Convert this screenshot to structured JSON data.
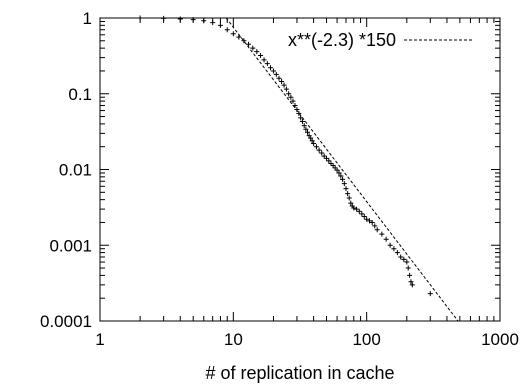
{
  "chart_data": {
    "type": "scatter",
    "title": "",
    "xlabel": "# of replication in cache",
    "ylabel": "",
    "x_scale": "log",
    "y_scale": "log",
    "xlim": [
      1,
      1000
    ],
    "ylim": [
      0.0001,
      1
    ],
    "x_ticks": [
      {
        "value": 1,
        "label": "1"
      },
      {
        "value": 10,
        "label": "10"
      },
      {
        "value": 100,
        "label": "100"
      },
      {
        "value": 1000,
        "label": "1000"
      }
    ],
    "y_ticks": [
      {
        "value": 1,
        "label": "1"
      },
      {
        "value": 0.1,
        "label": "0.1"
      },
      {
        "value": 0.01,
        "label": "0.01"
      },
      {
        "value": 0.001,
        "label": "0.001"
      },
      {
        "value": 0.0001,
        "label": "0.0001"
      }
    ],
    "grid": false,
    "legend_position": "top-right",
    "fit_line": {
      "label": "x**(-2.3) *150",
      "coefficient": 150,
      "exponent": -2.3,
      "style": "dashed",
      "color": "#000000"
    },
    "series": [
      {
        "marker": "+",
        "color": "#000000",
        "points": [
          [
            2,
            1
          ],
          [
            3,
            0.99
          ],
          [
            4,
            0.97
          ],
          [
            5,
            0.95
          ],
          [
            6,
            0.92
          ],
          [
            7,
            0.87
          ],
          [
            8,
            0.8
          ],
          [
            9,
            0.7
          ],
          [
            10,
            0.62
          ],
          [
            11,
            0.56
          ],
          [
            12,
            0.5
          ],
          [
            13,
            0.45
          ],
          [
            14,
            0.4
          ],
          [
            15,
            0.36
          ],
          [
            16,
            0.32
          ],
          [
            17,
            0.28
          ],
          [
            18,
            0.25
          ],
          [
            19,
            0.22
          ],
          [
            20,
            0.2
          ],
          [
            21,
            0.18
          ],
          [
            22,
            0.16
          ],
          [
            23,
            0.145
          ],
          [
            24,
            0.13
          ],
          [
            25,
            0.115
          ],
          [
            26,
            0.1
          ],
          [
            27,
            0.09
          ],
          [
            28,
            0.08
          ],
          [
            29,
            0.07
          ],
          [
            30,
            0.062
          ],
          [
            31,
            0.055
          ],
          [
            32,
            0.048
          ],
          [
            33,
            0.043
          ],
          [
            34,
            0.038
          ],
          [
            35,
            0.034
          ],
          [
            36,
            0.031
          ],
          [
            37,
            0.028
          ],
          [
            38,
            0.026
          ],
          [
            39,
            0.024
          ],
          [
            40,
            0.022
          ],
          [
            42,
            0.02
          ],
          [
            44,
            0.018
          ],
          [
            46,
            0.0165
          ],
          [
            48,
            0.015
          ],
          [
            50,
            0.014
          ],
          [
            52,
            0.013
          ],
          [
            54,
            0.012
          ],
          [
            56,
            0.0113
          ],
          [
            58,
            0.0105
          ],
          [
            60,
            0.0098
          ],
          [
            62,
            0.009
          ],
          [
            64,
            0.0082
          ],
          [
            66,
            0.0074
          ],
          [
            68,
            0.0065
          ],
          [
            70,
            0.0056
          ],
          [
            72,
            0.0048
          ],
          [
            74,
            0.0042
          ],
          [
            76,
            0.0036
          ],
          [
            78,
            0.0033
          ],
          [
            80,
            0.0031
          ],
          [
            84,
            0.003
          ],
          [
            88,
            0.0028
          ],
          [
            92,
            0.0026
          ],
          [
            96,
            0.0024
          ],
          [
            100,
            0.0022
          ],
          [
            105,
            0.0021
          ],
          [
            110,
            0.002
          ],
          [
            115,
            0.0018
          ],
          [
            120,
            0.0016
          ],
          [
            130,
            0.0014
          ],
          [
            140,
            0.0012
          ],
          [
            150,
            0.001
          ],
          [
            160,
            0.0009
          ],
          [
            170,
            0.0008
          ],
          [
            180,
            0.0007
          ],
          [
            190,
            0.00065
          ],
          [
            200,
            0.0006
          ],
          [
            205,
            0.0005
          ],
          [
            210,
            0.0004
          ],
          [
            215,
            0.00033
          ],
          [
            220,
            0.0003
          ],
          [
            300,
            0.00023
          ]
        ]
      }
    ]
  }
}
